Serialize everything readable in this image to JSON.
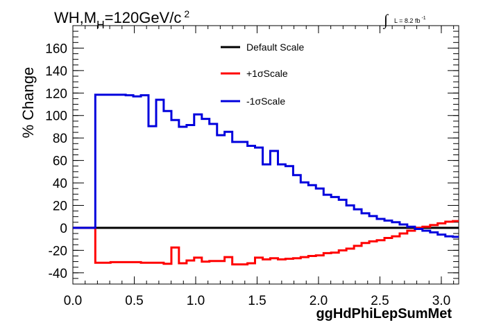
{
  "header": {
    "title": "WH,M",
    "title_sub": "H",
    "title_rest": "=120GeV/c",
    "title_sup": "2",
    "lumi_symbol": "∫",
    "lumi_text": "L = 8.2 fb",
    "lumi_sup": "-1"
  },
  "chart_data": {
    "type": "line",
    "xlabel": "ggHdPhiLepSumMet",
    "ylabel": "% Change",
    "xlim": [
      0,
      3.1416
    ],
    "ylim": [
      -50,
      180
    ],
    "x_ticks": [
      "0.0",
      "0.5",
      "1.0",
      "1.5",
      "2.0",
      "2.5",
      "3.0"
    ],
    "y_ticks": [
      "-40",
      "-20",
      "0",
      "20",
      "40",
      "60",
      "80",
      "100",
      "120",
      "140",
      "160"
    ],
    "x_tick_values": [
      0,
      0.5,
      1.0,
      1.5,
      2.0,
      2.5,
      3.0
    ],
    "y_tick_values": [
      -40,
      -20,
      0,
      20,
      40,
      60,
      80,
      100,
      120,
      140,
      160
    ],
    "legend_position": "top-center",
    "bin_edges": [
      0,
      0.1827,
      0.2442,
      0.3067,
      0.3679,
      0.4303,
      0.4918,
      0.5542,
      0.6157,
      0.6781,
      0.7396,
      0.8021,
      0.8636,
      0.926,
      0.9875,
      1.0499,
      1.1114,
      1.1739,
      1.2354,
      1.2978,
      1.3593,
      1.4217,
      1.4832,
      1.5457,
      1.6072,
      1.6696,
      1.7311,
      1.7935,
      1.855,
      1.9175,
      1.9789,
      2.0414,
      2.1029,
      2.1653,
      2.2268,
      2.2892,
      2.3507,
      2.4132,
      2.4747,
      2.5371,
      2.5986,
      2.661,
      2.7225,
      2.785,
      2.8465,
      2.9089,
      2.9704,
      3.0328,
      3.0943,
      3.1416
    ],
    "series": [
      {
        "name": "Default Scale",
        "color": "#000000",
        "values": [
          0,
          0,
          0,
          0,
          0,
          0,
          0,
          0,
          0,
          0,
          0,
          0,
          0,
          0,
          0,
          0,
          0,
          0,
          0,
          0,
          0,
          0,
          0,
          0,
          0,
          0,
          0,
          0,
          0,
          0,
          0,
          0,
          0,
          0,
          0,
          0,
          0,
          0,
          0,
          0,
          0,
          0,
          0,
          0,
          0,
          0,
          0,
          0,
          0
        ]
      },
      {
        "name": "+1σScale",
        "color": "#ff0000",
        "values": [
          0,
          -31,
          -31,
          -30.5,
          -30.5,
          -30.5,
          -30.5,
          -31,
          -31,
          -31,
          -32,
          -17.5,
          -31.5,
          -29,
          -26.5,
          -30,
          -29.5,
          -29.5,
          -26,
          -32.5,
          -32.5,
          -31.5,
          -26.5,
          -28,
          -27,
          -28,
          -27.5,
          -27,
          -26,
          -25,
          -24.5,
          -22.5,
          -22,
          -20,
          -18.5,
          -16,
          -13.5,
          -12,
          -11,
          -9,
          -7.5,
          -5,
          -2.5,
          0,
          1,
          2.5,
          4,
          5.5,
          6
        ]
      },
      {
        "name": "-1σScale",
        "color": "#0000dd",
        "values": [
          0,
          118.5,
          118.5,
          118.5,
          118.5,
          118,
          117,
          118,
          90.5,
          114,
          104,
          96,
          90,
          91.5,
          101,
          97,
          92.5,
          82.5,
          85.5,
          76.5,
          76.5,
          73,
          71.5,
          56.5,
          68.5,
          56.5,
          55,
          47,
          40.5,
          38,
          35,
          29.5,
          27.5,
          25,
          20,
          16.5,
          13,
          10.5,
          8,
          6.5,
          5,
          3,
          1,
          -1,
          -2.5,
          -4,
          -6,
          -7.5,
          -8
        ]
      }
    ]
  }
}
